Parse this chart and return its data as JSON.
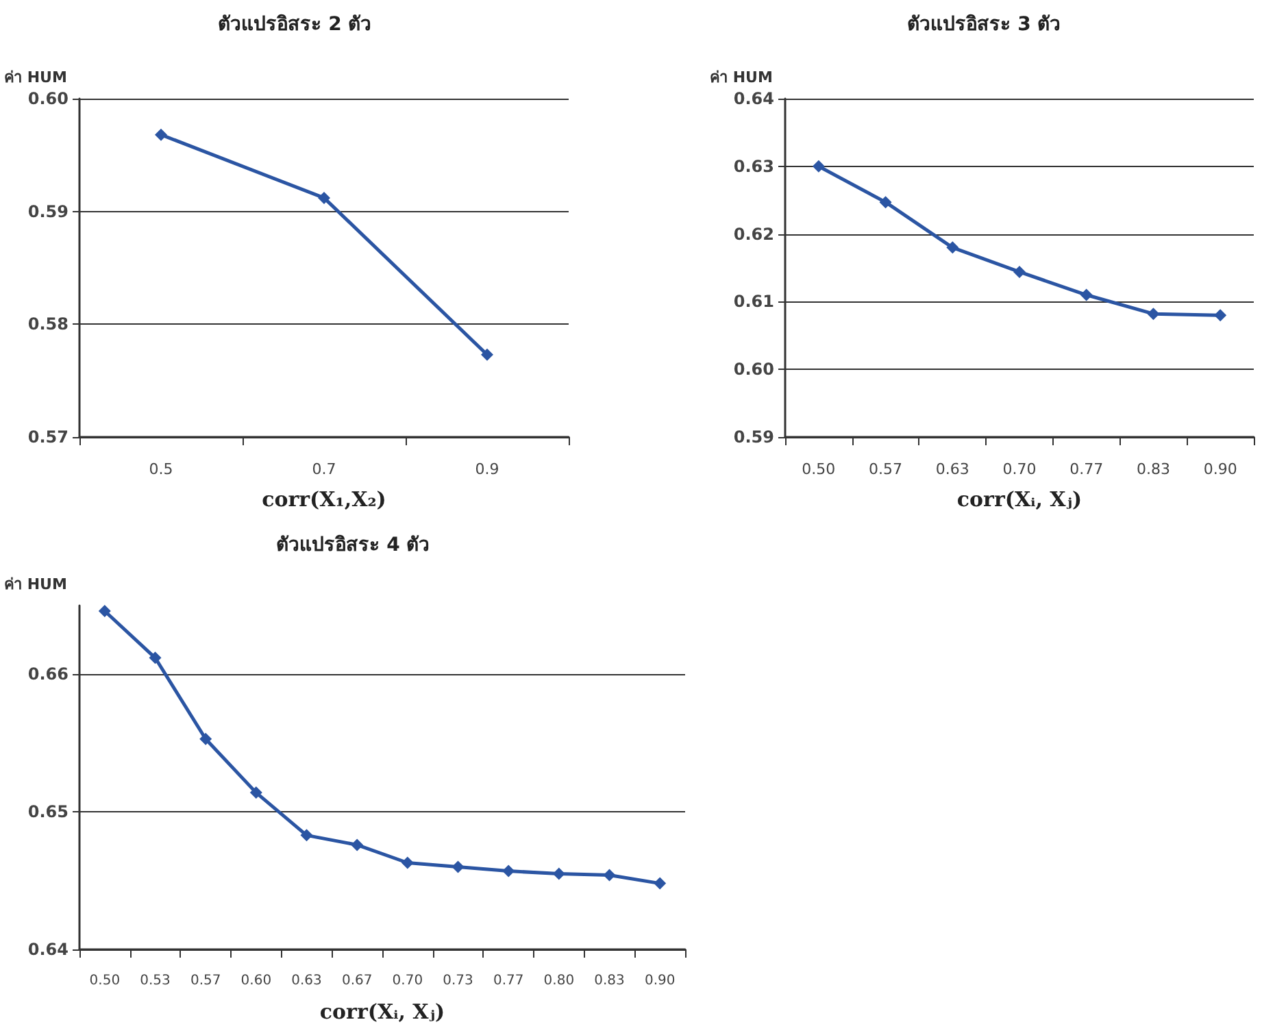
{
  "chart_data": [
    {
      "type": "line",
      "title": "ตัวแปรอิสระ 2 ตัว",
      "ylabel": "ค่า HUM",
      "xlabel": "corr(X₁,X₂)",
      "categories": [
        "0.5",
        "0.7",
        "0.9"
      ],
      "series": [
        {
          "color": "#2b55a3",
          "values": [
            0.5968,
            0.5912,
            0.5773
          ]
        }
      ],
      "ylim": [
        0.57,
        0.6
      ],
      "yticks": [
        {
          "value": 0.57,
          "label": "0.57"
        },
        {
          "value": 0.58,
          "label": "0.58"
        },
        {
          "value": 0.59,
          "label": "0.59"
        },
        {
          "value": 0.6,
          "label": "0.60"
        }
      ],
      "grid": "y",
      "marker": "diamond",
      "line_style": "solid"
    },
    {
      "type": "line",
      "title": "ตัวแปรอิสระ 3 ตัว",
      "ylabel": "ค่า HUM",
      "xlabel": "corr(Xᵢ, Xⱼ)",
      "categories": [
        "0.50",
        "0.57",
        "0.63",
        "0.70",
        "0.77",
        "0.83",
        "0.90"
      ],
      "series": [
        {
          "color": "#2b55a3",
          "values": [
            0.63,
            0.6247,
            0.618,
            0.6144,
            0.611,
            0.6082,
            0.608
          ]
        }
      ],
      "ylim": [
        0.59,
        0.64
      ],
      "yticks": [
        {
          "value": 0.59,
          "label": "0.59"
        },
        {
          "value": 0.6,
          "label": "0.60"
        },
        {
          "value": 0.61,
          "label": "0.61"
        },
        {
          "value": 0.62,
          "label": "0.62"
        },
        {
          "value": 0.63,
          "label": "0.63"
        },
        {
          "value": 0.64,
          "label": "0.64"
        }
      ],
      "grid": "y",
      "marker": "diamond",
      "line_style": "solid"
    },
    {
      "type": "line",
      "title": "ตัวแปรอิสระ 4 ตัว",
      "ylabel": "ค่า HUM",
      "xlabel": "corr(Xᵢ, Xⱼ)",
      "categories": [
        "0.50",
        "0.53",
        "0.57",
        "0.60",
        "0.63",
        "0.67",
        "0.70",
        "0.73",
        "0.77",
        "0.80",
        "0.83",
        "0.90"
      ],
      "series": [
        {
          "color": "#2b55a3",
          "values": [
            0.6646,
            0.6612,
            0.6553,
            0.6514,
            0.6483,
            0.6476,
            0.6463,
            0.646,
            0.6457,
            0.6455,
            0.6454,
            0.6448
          ]
        }
      ],
      "ylim": [
        0.64,
        0.665
      ],
      "yticks": [
        {
          "value": 0.64,
          "label": "0.64"
        },
        {
          "value": 0.65,
          "label": "0.65"
        },
        {
          "value": 0.66,
          "label": "0.66"
        }
      ],
      "grid": "y",
      "marker": "diamond",
      "line_style": "solid"
    }
  ]
}
